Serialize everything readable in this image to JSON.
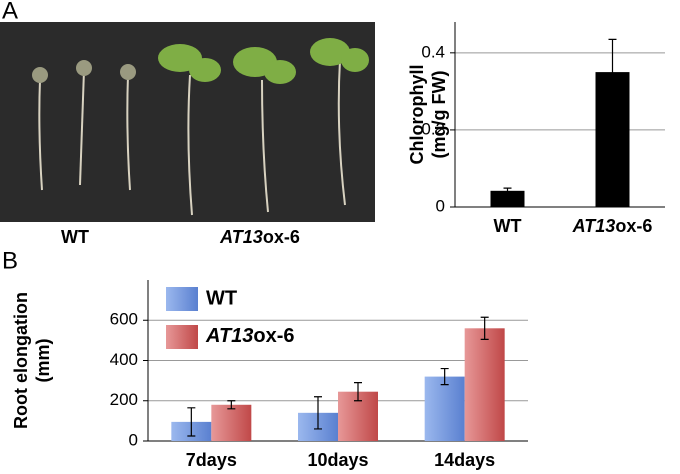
{
  "panels": {
    "a": "A",
    "b": "B"
  },
  "photo_labels": [
    "WT",
    "AT13ox-6"
  ],
  "chart_data": [
    {
      "type": "bar",
      "ylabel": [
        "Chlorophyll",
        "(mg/g FW)"
      ],
      "categories": [
        "WT",
        "AT13ox-6"
      ],
      "values": [
        0.042,
        0.35
      ],
      "errors": [
        0.007,
        0.085
      ],
      "color": "#000000",
      "ylim": [
        0,
        0.48
      ],
      "yticks": [
        0,
        0.2,
        0.4
      ],
      "grid": true
    },
    {
      "type": "grouped-bar",
      "ylabel": [
        "Root elongation",
        "(mm)"
      ],
      "categories": [
        "7days",
        "10days",
        "14days"
      ],
      "series": [
        {
          "name": "WT",
          "color": "#6f96e0",
          "values": [
            95,
            140,
            320
          ],
          "errors": [
            70,
            80,
            40
          ]
        },
        {
          "name": "AT13ox-6",
          "color": "#d46a6a",
          "values": [
            180,
            245,
            560
          ],
          "errors": [
            20,
            45,
            55
          ]
        }
      ],
      "ylim": [
        0,
        800
      ],
      "yticks": [
        0,
        200,
        400,
        600
      ],
      "grid": true,
      "legend": "top-left"
    }
  ]
}
